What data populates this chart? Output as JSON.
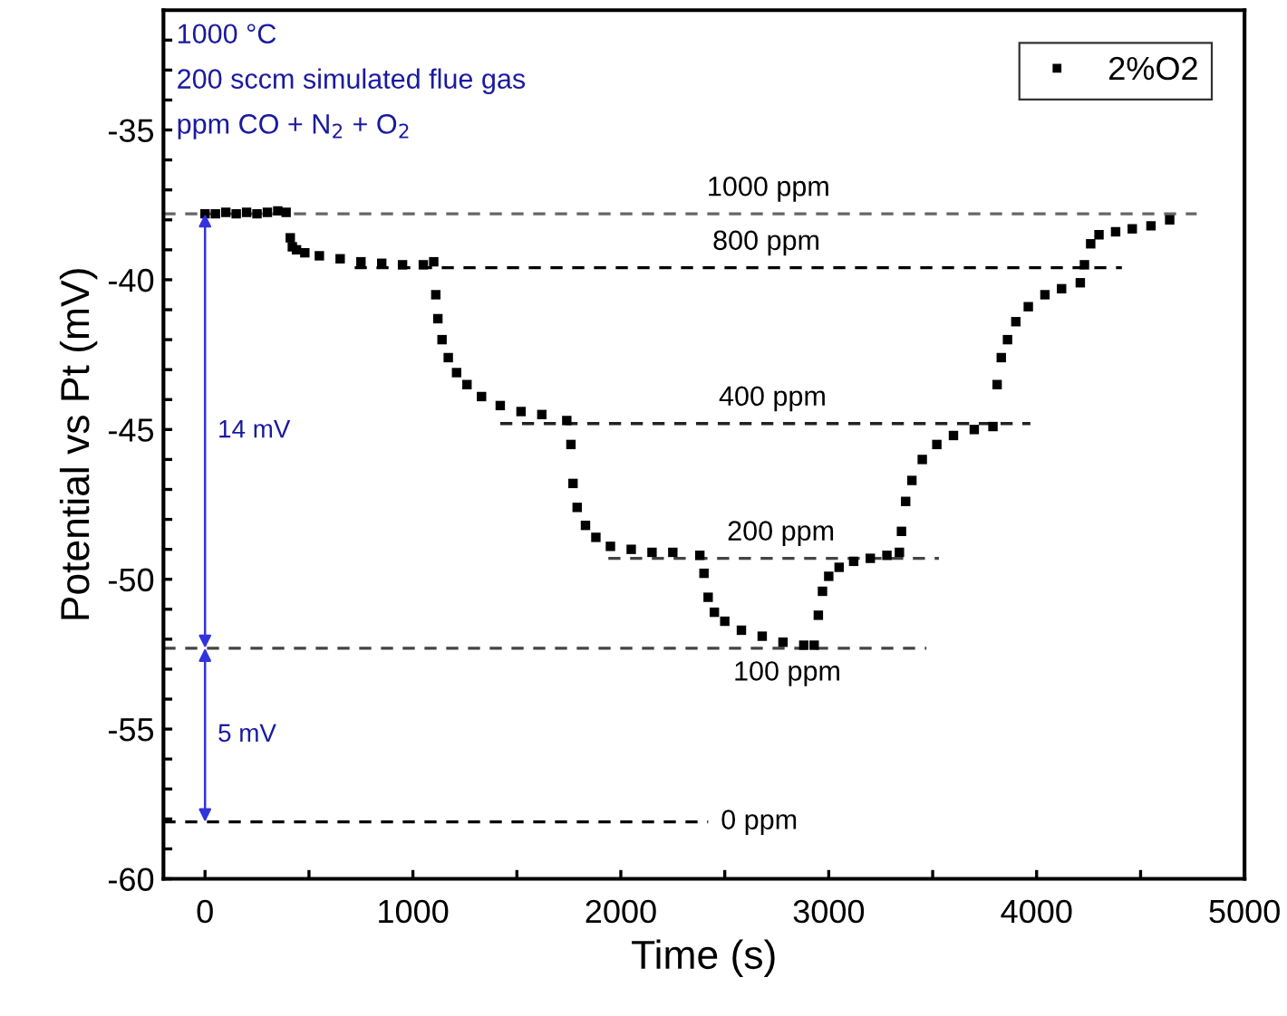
{
  "chart_data": {
    "type": "scatter",
    "xlabel": "Time (s)",
    "ylabel": "Potential vs Pt (mV)",
    "xlim": [
      -200,
      5000
    ],
    "ylim": [
      -60,
      -31
    ],
    "xticks": [
      0,
      {
        "value": 500,
        "label": null
      },
      1000,
      {
        "value": 1500,
        "label": null
      },
      2000,
      {
        "value": 2500,
        "label": null
      },
      3000,
      {
        "value": 3500,
        "label": null
      },
      4000,
      {
        "value": 4500,
        "label": null
      },
      5000
    ],
    "yticks": [
      -60,
      {
        "value": -59,
        "label": null
      },
      {
        "value": -58,
        "label": null
      },
      {
        "value": -57,
        "label": null
      },
      {
        "value": -56,
        "label": null
      },
      -55,
      {
        "value": -54,
        "label": null
      },
      {
        "value": -53,
        "label": null
      },
      {
        "value": -52,
        "label": null
      },
      {
        "value": -51,
        "label": null
      },
      -50,
      {
        "value": -49,
        "label": null
      },
      {
        "value": -48,
        "label": null
      },
      {
        "value": -47,
        "label": null
      },
      {
        "value": -46,
        "label": null
      },
      -45,
      {
        "value": -44,
        "label": null
      },
      {
        "value": -43,
        "label": null
      },
      {
        "value": -42,
        "label": null
      },
      {
        "value": -41,
        "label": null
      },
      -40,
      {
        "value": -39,
        "label": null
      },
      {
        "value": -38,
        "label": null
      },
      {
        "value": -37,
        "label": null
      },
      {
        "value": -36,
        "label": null
      },
      -35,
      {
        "value": -34,
        "label": null
      },
      {
        "value": -33,
        "label": null
      },
      {
        "value": -32,
        "label": null
      }
    ],
    "grid": false,
    "legend": "top right",
    "marker": "square",
    "series": [
      {
        "name": "2%O2",
        "color": "#000000",
        "x": [
          0,
          50,
          100,
          150,
          200,
          250,
          300,
          350,
          390,
          410,
          420,
          440,
          480,
          550,
          650,
          750,
          850,
          950,
          1050,
          1100,
          1110,
          1120,
          1140,
          1170,
          1210,
          1260,
          1330,
          1420,
          1520,
          1620,
          1740,
          1760,
          1770,
          1790,
          1830,
          1880,
          1950,
          2050,
          2150,
          2250,
          2380,
          2400,
          2420,
          2450,
          2500,
          2580,
          2680,
          2780,
          2880,
          2930,
          2950,
          2970,
          3000,
          3050,
          3120,
          3200,
          3280,
          3340,
          3350,
          3370,
          3400,
          3450,
          3520,
          3600,
          3700,
          3790,
          3810,
          3830,
          3860,
          3900,
          3960,
          4040,
          4120,
          4210,
          4230,
          4260,
          4300,
          4380,
          4460,
          4550,
          4640
        ],
        "values": [
          -37.8,
          -37.8,
          -37.75,
          -37.8,
          -37.75,
          -37.8,
          -37.75,
          -37.7,
          -37.75,
          -38.6,
          -38.9,
          -39.0,
          -39.1,
          -39.2,
          -39.3,
          -39.4,
          -39.45,
          -39.5,
          -39.5,
          -39.4,
          -40.5,
          -41.3,
          -42.0,
          -42.6,
          -43.1,
          -43.5,
          -43.9,
          -44.2,
          -44.4,
          -44.5,
          -44.7,
          -45.5,
          -46.8,
          -47.6,
          -48.2,
          -48.6,
          -48.9,
          -49.0,
          -49.1,
          -49.1,
          -49.2,
          -49.8,
          -50.6,
          -51.1,
          -51.4,
          -51.7,
          -51.9,
          -52.1,
          -52.2,
          -52.2,
          -51.2,
          -50.4,
          -49.9,
          -49.6,
          -49.4,
          -49.3,
          -49.2,
          -49.1,
          -48.4,
          -47.4,
          -46.7,
          -46.0,
          -45.5,
          -45.2,
          -45.0,
          -44.9,
          -43.5,
          -42.6,
          -42.0,
          -41.4,
          -40.9,
          -40.5,
          -40.3,
          -40.1,
          -39.5,
          -38.8,
          -38.5,
          -38.4,
          -38.3,
          -38.2,
          -38.0
        ]
      },
      {
        "type": "line",
        "marker": "none",
        "line_style": "dashed",
        "color": "#666666",
        "x": [
          -200,
          4770
        ],
        "values": [
          -37.8,
          -37.8
        ]
      },
      {
        "type": "line",
        "marker": "none",
        "line_style": "dashed",
        "color": "#000000",
        "x": [
          720,
          4410
        ],
        "values": [
          -39.6,
          -39.6
        ]
      },
      {
        "type": "line",
        "marker": "none",
        "line_style": "dashed",
        "color": "#222222",
        "x": [
          1420,
          3970
        ],
        "values": [
          -44.8,
          -44.8
        ]
      },
      {
        "type": "line",
        "marker": "none",
        "line_style": "dashed",
        "color": "#444444",
        "x": [
          1940,
          3530
        ],
        "values": [
          -49.3,
          -49.3
        ]
      },
      {
        "type": "line",
        "marker": "none",
        "line_style": "dashed",
        "color": "#444444",
        "x": [
          -200,
          3470
        ],
        "values": [
          -52.3,
          -52.3
        ]
      },
      {
        "type": "line",
        "marker": "none",
        "line_style": "dashed",
        "color": "#000000",
        "x": [
          -200,
          2420
        ],
        "values": [
          -58.1,
          -58.1
        ]
      }
    ],
    "annotations": [
      "1000 °C",
      "200 sccm simulated flue gas",
      "ppm CO + N$_{2}$ + O$_{2}$",
      {
        "text": "1000 ppm",
        "x": 2710,
        "y": -37.8
      },
      {
        "text": "800 ppm",
        "x": 2700,
        "y": -39.6
      },
      {
        "text": "400 ppm",
        "x": 2730,
        "y": -44.8
      },
      {
        "text": "200 ppm",
        "x": 2770,
        "y": -49.3
      },
      {
        "text": "100 ppm",
        "x": 2800,
        "y": -52.3
      },
      {
        "text": "0 ppm",
        "x": 2420,
        "y": -58.1
      },
      "14 mV",
      "5 mV"
    ]
  }
}
